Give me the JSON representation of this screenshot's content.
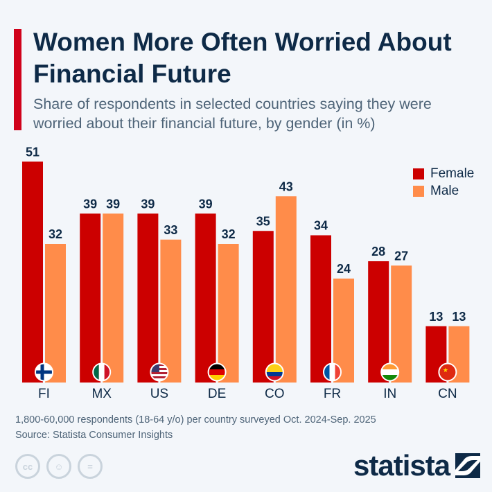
{
  "title": "Women More Often Worried About Financial Future",
  "subtitle": "Share of respondents in selected countries saying they were worried about their financial future, by gender (in %)",
  "note": "1,800-60,000 respondents (18-64 y/o) per country surveyed Oct. 2024-Sep. 2025",
  "source": "Source: Statista Consumer Insights",
  "brand": "statista",
  "license_icons": [
    "cc-icon",
    "attribution-icon",
    "no-derivatives-icon"
  ],
  "chart_data": {
    "type": "bar",
    "categories": [
      "FI",
      "MX",
      "US",
      "DE",
      "CO",
      "FR",
      "IN",
      "CN"
    ],
    "series": [
      {
        "name": "Female",
        "color": "#cc0000",
        "values": [
          51,
          39,
          39,
          39,
          35,
          34,
          28,
          13
        ]
      },
      {
        "name": "Male",
        "color": "#ff8c4a",
        "values": [
          32,
          39,
          33,
          32,
          43,
          24,
          27,
          13
        ]
      }
    ],
    "legend": "top-right",
    "grid": false,
    "ylim": [
      0,
      51
    ]
  }
}
